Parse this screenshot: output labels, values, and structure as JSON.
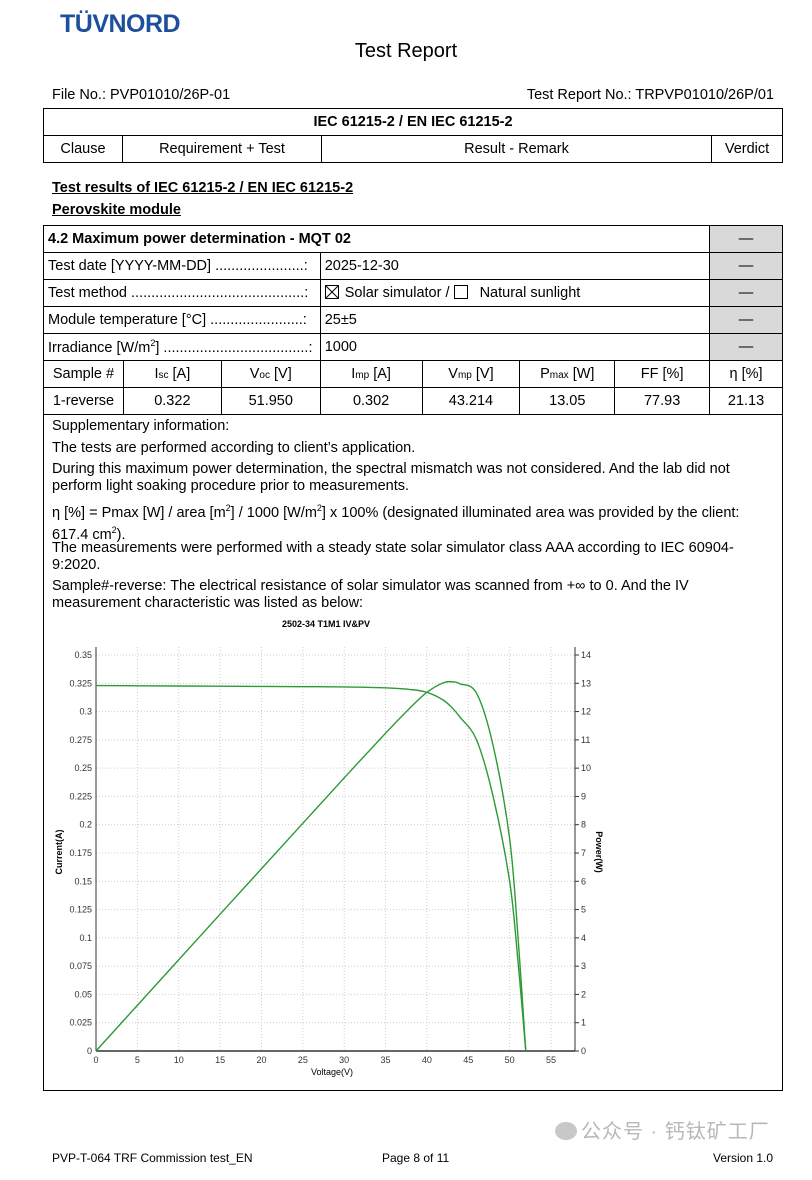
{
  "header": {
    "logo": "TÜVNORD",
    "title": "Test Report",
    "file_no": "File No.: PVP01010/26P-01",
    "report_no": "Test Report No.: TRPVP01010/26P/01"
  },
  "standard_table": {
    "standard": "IEC 61215-2 / EN IEC 61215-2",
    "columns": [
      "Clause",
      "Requirement + Test",
      "Result - Remark",
      "Verdict"
    ]
  },
  "section": {
    "heading": "Test results of IEC 61215-2 / EN IEC 61215-2",
    "subheading": "Perovskite module"
  },
  "test": {
    "title": "4.2 Maximum power determination - MQT 02",
    "verdict": "—",
    "rows": [
      {
        "label": "Test date [YYYY-MM-DD] ......................:",
        "value": "2025-12-30",
        "verdict": "—"
      },
      {
        "label": "Test method ...........................................:",
        "verdict": "—"
      },
      {
        "label": "Module temperature [°C] .......................:",
        "value": "25±5",
        "verdict": "—"
      },
      {
        "label": "Irradiance [W/m",
        "label_sup": "2",
        "label_end": "] ....................................:",
        "value": "1000",
        "verdict": "—"
      }
    ],
    "method": {
      "option1": "Solar simulator /",
      "option1_checked": true,
      "option2": "Natural sunlight",
      "option2_checked": false
    },
    "results_headers": [
      {
        "main": "Sample #"
      },
      {
        "main": "I",
        "sub": "sc",
        "unit": " [A]"
      },
      {
        "main": "V",
        "sub": "oc",
        "unit": " [V]"
      },
      {
        "main": "I",
        "sub": "mp",
        "unit": " [A]"
      },
      {
        "main": "V",
        "sub": "mp",
        "unit": " [V]"
      },
      {
        "main": "P",
        "sub": "max",
        "unit": " [W]"
      },
      {
        "main": "FF [%]"
      },
      {
        "main": "η [%]"
      }
    ],
    "results_row": [
      "1-reverse",
      "0.322",
      "51.950",
      "0.302",
      "43.214",
      "13.05",
      "77.93",
      "21.13"
    ]
  },
  "supplementary": {
    "title": "Supplementary information:",
    "p1": "The tests are performed according to client’s application.",
    "p2": "During this maximum power determination, the spectral mismatch was not considered. And the lab did not perform light soaking procedure prior to measurements.",
    "p3a": "η [%] = Pmax [W] / area [m",
    "p3b": "] / 1000 [W/m",
    "p3c": "] x 100% (designated illuminated area was provided by the client: 617.4 cm",
    "p3d": ").",
    "sup2": "2",
    "p4": "The measurements were performed with a steady state solar simulator class AAA according to IEC 60904-9:2020.",
    "p5": "Sample#-reverse: The electrical resistance of solar simulator was scanned from +∞ to 0. And the IV measurement characteristic was listed as below:"
  },
  "chart_data": {
    "type": "line",
    "title": "2502-34 T1M1 IV&PV",
    "xlabel": "Voltage(V)",
    "ylabel": "Current(A)",
    "y2label": "Power(W)",
    "xlim": [
      0,
      57.9
    ],
    "ylim": [
      0,
      0.35
    ],
    "y2lim": [
      0,
      14
    ],
    "xticks": [
      0,
      5,
      10,
      15,
      20,
      25,
      30,
      35,
      40,
      45,
      50,
      55
    ],
    "yticks": [
      "0",
      "0.025",
      "0.05",
      "0.075",
      "0.1",
      "0.125",
      "0.15",
      "0.175",
      "0.2",
      "0.225",
      "0.25",
      "0.275",
      "0.3",
      "0.325",
      "0.35"
    ],
    "y2ticks": [
      "0",
      "1",
      "2",
      "3",
      "4",
      "5",
      "6",
      "7",
      "8",
      "9",
      "10",
      "11",
      "12",
      "13",
      "14"
    ],
    "grid": true,
    "color": "#2e9a35",
    "series": [
      {
        "axis": "left",
        "x": [
          0,
          5,
          10,
          15,
          20,
          25,
          30,
          35,
          38,
          40,
          42,
          43.214,
          44,
          46,
          48,
          50,
          51,
          51.95
        ],
        "y": [
          0.323,
          0.3228,
          0.3226,
          0.3224,
          0.3222,
          0.322,
          0.3218,
          0.321,
          0.3195,
          0.317,
          0.31,
          0.302,
          0.295,
          0.275,
          0.225,
          0.15,
          0.08,
          0
        ]
      },
      {
        "axis": "right",
        "x": [
          0,
          5,
          10,
          15,
          20,
          25,
          30,
          35,
          38,
          40,
          42,
          43.214,
          44,
          46,
          48,
          50,
          51,
          51.95
        ],
        "y": [
          0,
          1.614,
          3.226,
          4.836,
          6.444,
          8.05,
          9.654,
          11.235,
          12.141,
          12.68,
          13.02,
          13.05,
          12.98,
          12.65,
          10.8,
          7.5,
          4.08,
          0
        ]
      }
    ]
  },
  "footer": {
    "left": "PVP-T-064 TRF Commission test_EN",
    "center": "Page 8 of 11",
    "right": "Version 1.0",
    "watermark": "公众号 · 钙钛矿工厂"
  }
}
